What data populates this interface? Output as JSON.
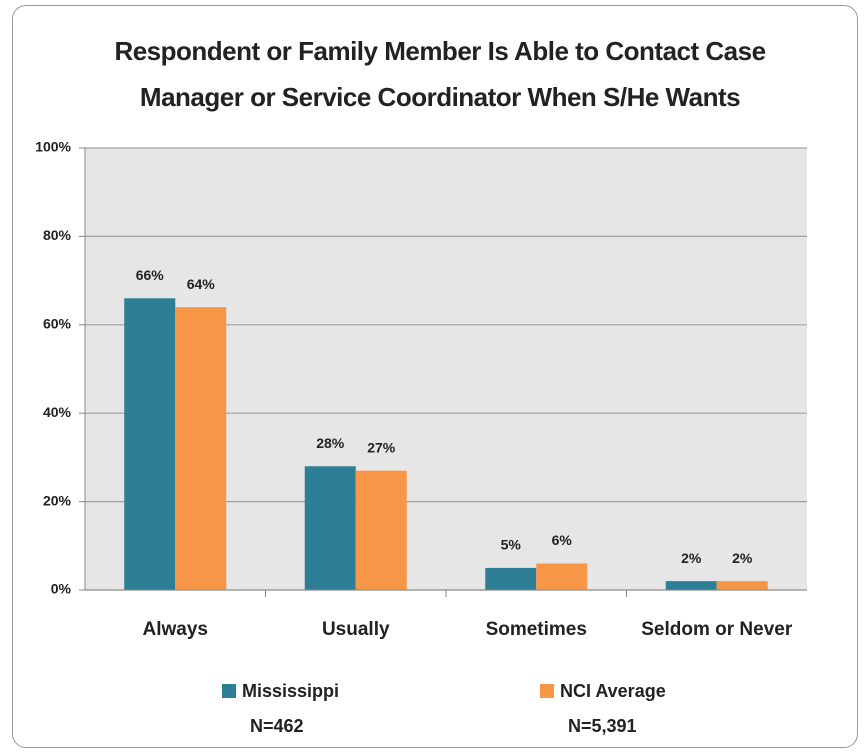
{
  "chart_data": {
    "type": "bar",
    "title": "Respondent or Family Member Is Able to Contact Case Manager or Service Coordinator When S/He Wants",
    "categories": [
      "Always",
      "Usually",
      "Sometimes",
      "Seldom or Never"
    ],
    "series": [
      {
        "name": "Mississippi",
        "sample_label": "N=462",
        "color": "#2e7f95",
        "values": [
          66,
          28,
          5,
          2
        ],
        "value_labels": [
          "66%",
          "28%",
          "5%",
          "2%"
        ]
      },
      {
        "name": "NCI Average",
        "sample_label": "N=5,391",
        "color": "#f79646",
        "values": [
          64,
          27,
          6,
          2
        ],
        "value_labels": [
          "64%",
          "27%",
          "6%",
          "2%"
        ]
      }
    ],
    "ylim": [
      0,
      100
    ],
    "yticks": [
      {
        "value": 0,
        "label": "0%"
      },
      {
        "value": 20,
        "label": "20%"
      },
      {
        "value": 40,
        "label": "40%"
      },
      {
        "value": 60,
        "label": "60%"
      },
      {
        "value": 80,
        "label": "80%"
      },
      {
        "value": 100,
        "label": "100%"
      }
    ],
    "grid": true,
    "legend": "bottom"
  }
}
